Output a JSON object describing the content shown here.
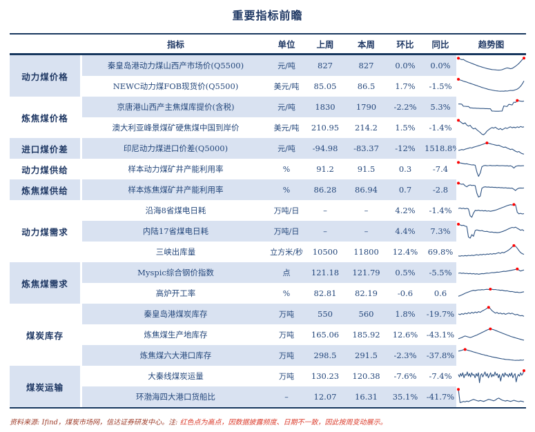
{
  "title": "重要指标前瞻",
  "header": {
    "indicator": "指标",
    "unit": "单位",
    "last_week": "上周",
    "this_week": "本周",
    "wow": "环比",
    "yoy": "同比",
    "trend": "趋势图"
  },
  "groups": [
    {
      "label": "动力煤价格",
      "span": 2
    },
    {
      "label": "炼焦煤价格",
      "span": 2
    },
    {
      "label": "进口煤价差",
      "span": 1
    },
    {
      "label": "动力煤供给",
      "span": 1
    },
    {
      "label": "炼焦煤供给",
      "span": 1
    },
    {
      "label": "动力煤需求",
      "span": 3
    },
    {
      "label": "炼焦煤需求",
      "span": 2
    },
    {
      "label": "煤炭库存",
      "span": 3
    },
    {
      "label": "煤炭运输",
      "span": 2
    }
  ],
  "rows": [
    {
      "indicator": "秦皇岛港动力煤山西产市场价(Q5500)",
      "unit": "元/吨",
      "last_week": "827",
      "this_week": "827",
      "wow": "0.0%",
      "yoy": "0.0%",
      "spark": {
        "y": [
          9.4,
          9.0,
          8.6,
          8.7,
          8.0,
          7.5,
          7.1,
          6.7,
          6.3,
          5.9,
          5.5,
          5.1,
          4.7,
          4.4,
          4.1,
          3.8,
          3.5,
          3.2,
          3.0,
          2.8,
          2.6,
          2.5,
          2.4,
          2.3,
          2.25,
          2.3,
          2.5,
          2.9,
          3.3,
          3.6,
          3.4,
          3.1,
          3.3,
          3.9,
          4.6,
          5.4,
          6.3,
          7.4,
          8.6,
          9.5
        ],
        "dots": [
          0,
          39
        ]
      }
    },
    {
      "indicator": "NEWC动力煤FOB现货价(Q5500)",
      "unit": "美元/吨",
      "last_week": "85.05",
      "this_week": "86.5",
      "wow": "1.7%",
      "yoy": "-1.5%",
      "spark": {
        "y": [
          9.2,
          8.8,
          8.5,
          8.1,
          7.8,
          7.5,
          7.1,
          6.8,
          6.4,
          6.1,
          5.7,
          5.4,
          5.0,
          4.7,
          4.3,
          4.0,
          3.7,
          3.4,
          3.1,
          2.9,
          2.7,
          2.5,
          2.3,
          2.2,
          2.1,
          2.0,
          2.1,
          2.0,
          2.2,
          2.1,
          2.3,
          2.5,
          2.4,
          2.6,
          2.9,
          3.3,
          4.0,
          5.0,
          6.4,
          8.2
        ],
        "dots": [
          0
        ]
      }
    },
    {
      "indicator": "京唐港山西产主焦煤库提价(含税)",
      "unit": "元/吨",
      "last_week": "1830",
      "this_week": "1790",
      "wow": "-2.2%",
      "yoy": "5.3%",
      "spark": {
        "y": [
          6.8,
          6.8,
          6.7,
          5.4,
          5.4,
          5.3,
          5.3,
          4.4,
          4.4,
          4.3,
          4.3,
          4.2,
          4.2,
          4.1,
          4.1,
          4.1,
          4.0,
          4.0,
          3.9,
          3.9,
          2.5,
          2.5,
          2.4,
          2.4,
          2.4,
          2.5,
          2.5,
          5.6,
          5.4,
          5.3,
          6.6,
          6.4,
          6.2,
          7.9,
          7.7,
          8.9,
          8.7,
          8.5,
          8.4,
          8.6
        ],
        "dots": [
          35
        ]
      }
    },
    {
      "indicator": "澳大利亚峰景煤矿硬焦煤中国到岸价",
      "unit": "美元/吨",
      "last_week": "210.95",
      "this_week": "214.2",
      "wow": "1.5%",
      "yoy": "-1.4%",
      "spark": {
        "y": [
          9.4,
          8.7,
          7.9,
          7.3,
          7.9,
          6.6,
          5.9,
          6.4,
          5.1,
          4.3,
          4.7,
          3.7,
          2.9,
          2.1,
          1.1,
          0.7,
          1.6,
          2.9,
          3.7,
          4.5,
          5.1,
          4.7,
          5.3,
          4.5,
          3.9,
          4.5,
          3.7,
          4.3,
          4.9,
          4.5,
          5.1,
          5.5,
          4.9,
          5.3,
          4.9,
          5.5,
          5.1,
          5.7,
          5.3,
          5.5
        ],
        "dots": [
          0
        ]
      }
    },
    {
      "indicator": "印尼动力煤进口价差(Q5000)",
      "unit": "元/吨",
      "last_week": "-94.98",
      "this_week": "-83.37",
      "wow": "-12%",
      "yoy": "1518.8%",
      "spark": {
        "y": [
          3.8,
          4.0,
          4.3,
          4.1,
          4.5,
          4.8,
          5.1,
          5.4,
          5.2,
          5.7,
          6.0,
          6.3,
          6.6,
          6.9,
          7.3,
          7.6,
          8.0,
          8.3,
          8.1,
          7.8,
          7.5,
          7.3,
          7.0,
          6.8,
          6.9,
          6.4,
          6.0,
          5.6,
          5.8,
          5.2,
          4.8,
          4.3,
          4.6,
          3.9,
          3.3,
          2.8,
          3.1,
          2.3,
          1.8,
          1.5
        ],
        "dots": [
          17
        ]
      }
    },
    {
      "indicator": "样本动力煤矿井产能利用率",
      "unit": "%",
      "last_week": "91.2",
      "this_week": "91.5",
      "wow": "0.3",
      "yoy": "-7.4",
      "spark": {
        "y": [
          9.0,
          8.7,
          8.5,
          8.3,
          8.1,
          8.2,
          7.9,
          7.7,
          7.5,
          7.6,
          7.3,
          3.2,
          0.6,
          2.6,
          6.4,
          7.0,
          7.2,
          7.0,
          7.1,
          7.2,
          7.0,
          7.1,
          7.0,
          7.2,
          7.0,
          7.0,
          7.1,
          7.0,
          6.9,
          7.0,
          6.8,
          7.0,
          6.6,
          5.6,
          6.6,
          6.9,
          7.0,
          6.9,
          7.0,
          7.0
        ],
        "dots": [
          0
        ]
      }
    },
    {
      "indicator": "样本炼焦煤矿井产能利用率",
      "unit": "%",
      "last_week": "86.28",
      "this_week": "86.94",
      "wow": "0.7",
      "yoy": "-2.8",
      "spark": {
        "y": [
          9.0,
          8.6,
          8.3,
          8.5,
          7.4,
          6.8,
          7.6,
          7.9,
          7.6,
          7.7,
          7.4,
          2.9,
          0.6,
          1.2,
          5.9,
          6.6,
          6.8,
          6.6,
          6.7,
          6.5,
          6.6,
          6.4,
          6.5,
          6.3,
          6.4,
          6.2,
          6.3,
          6.1,
          6.2,
          6.0,
          6.1,
          5.9,
          6.0,
          5.3,
          4.6,
          5.5,
          6.0,
          6.1,
          6.0,
          6.1
        ],
        "dots": [
          0
        ]
      }
    },
    {
      "indicator": "沿海8省煤电日耗",
      "unit": "万吨/日",
      "last_week": "–",
      "this_week": "–",
      "wow": "4.2%",
      "yoy": "-1.4%",
      "spark": {
        "y": [
          6.2,
          6.5,
          6.1,
          6.4,
          6.0,
          6.3,
          5.9,
          1.8,
          0.9,
          3.4,
          5.1,
          4.9,
          5.2,
          4.8,
          5.0,
          4.7,
          4.9,
          4.6,
          4.8,
          4.5,
          4.7,
          4.9,
          5.2,
          5.5,
          5.9,
          6.3,
          6.7,
          7.1,
          7.5,
          7.9,
          8.2,
          8.5,
          8.3,
          8.6,
          8.4,
          3.9,
          3.0,
          3.3,
          2.9,
          3.1
        ],
        "dots": [
          33
        ]
      }
    },
    {
      "indicator": "内陆17省煤电日耗",
      "unit": "万吨/日",
      "last_week": "–",
      "this_week": "–",
      "wow": "4.4%",
      "yoy": "7.3%",
      "spark": {
        "y": [
          9.2,
          8.8,
          8.4,
          8.6,
          8.1,
          7.8,
          1.5,
          0.8,
          2.9,
          1.9,
          5.4,
          5.8,
          5.5,
          5.2,
          5.4,
          5.0,
          4.8,
          4.9,
          4.6,
          4.4,
          4.5,
          4.2,
          4.3,
          4.1,
          4.2,
          4.4,
          4.7,
          5.1,
          5.5,
          6.0,
          6.5,
          6.9,
          7.3,
          7.1,
          7.4,
          6.8,
          6.2,
          5.6,
          5.9,
          5.2
        ],
        "dots": [
          0
        ]
      }
    },
    {
      "indicator": "三峡出库量",
      "unit": "立方米/秒",
      "last_week": "10500",
      "this_week": "11800",
      "wow": "12.4%",
      "yoy": "69.8%",
      "spark": {
        "y": [
          2.6,
          2.4,
          2.7,
          2.5,
          2.8,
          2.6,
          2.9,
          2.7,
          3.0,
          2.8,
          3.1,
          3.3,
          3.0,
          3.4,
          3.2,
          3.6,
          3.3,
          3.7,
          3.5,
          3.9,
          3.6,
          4.0,
          3.8,
          4.2,
          4.5,
          4.1,
          4.7,
          4.4,
          5.0,
          5.5,
          6.2,
          7.0,
          8.0,
          8.8,
          8.4,
          7.2,
          5.8,
          4.6,
          3.9,
          3.5
        ],
        "dots": [
          33
        ]
      }
    },
    {
      "indicator": "Myspic综合钢价指数",
      "unit": "点",
      "last_week": "121.18",
      "this_week": "121.79",
      "wow": "0.5%",
      "yoy": "-5.5%",
      "spark": {
        "y": [
          4.6,
          4.8,
          4.5,
          4.7,
          4.4,
          4.6,
          4.3,
          4.5,
          4.2,
          4.4,
          4.1,
          4.3,
          4.0,
          4.2,
          4.4,
          4.3,
          4.5,
          4.7,
          4.6,
          4.8,
          5.0,
          4.9,
          5.1,
          5.3,
          5.2,
          5.4,
          5.6,
          5.8,
          5.7,
          5.9,
          6.1,
          6.3,
          6.5,
          6.7,
          6.9,
          7.2,
          6.5,
          5.9,
          6.3,
          6.6
        ],
        "dots": [
          35
        ]
      }
    },
    {
      "indicator": "高炉开工率",
      "unit": "%",
      "last_week": "82.81",
      "this_week": "82.19",
      "wow": "-0.6",
      "yoy": "0.6",
      "spark": {
        "y": [
          3.2,
          3.6,
          4.0,
          4.5,
          5.0,
          5.4,
          5.8,
          6.2,
          6.5,
          6.8,
          6.6,
          6.9,
          7.1,
          7.0,
          7.2,
          7.1,
          7.3,
          7.4,
          7.3,
          7.5,
          7.4,
          7.2,
          7.3,
          7.1,
          7.0,
          6.8,
          6.9,
          6.6,
          6.4,
          6.5,
          6.2,
          6.0,
          6.1,
          5.8,
          5.6,
          5.7,
          5.4,
          5.5,
          5.7,
          5.9
        ],
        "dots": [
          19
        ]
      }
    },
    {
      "indicator": "秦皇岛港煤炭库存",
      "unit": "万吨",
      "last_week": "550",
      "this_week": "560",
      "wow": "1.8%",
      "yoy": "-19.7%",
      "spark": {
        "y": [
          5.0,
          4.6,
          5.2,
          4.8,
          5.5,
          5.1,
          5.8,
          5.3,
          6.0,
          5.5,
          6.2,
          5.7,
          6.4,
          6.0,
          6.7,
          7.2,
          7.8,
          8.4,
          9.0,
          8.2,
          7.0,
          6.2,
          5.5,
          5.9,
          5.2,
          5.6,
          5.0,
          5.4,
          4.8,
          5.2,
          5.6,
          5.1,
          5.5,
          4.9,
          4.5,
          4.8,
          4.2,
          3.9,
          4.1,
          3.6
        ],
        "dots": [
          18
        ]
      }
    },
    {
      "indicator": "炼焦煤生产地库存",
      "unit": "万吨",
      "last_week": "165.06",
      "this_week": "185.92",
      "wow": "12.6%",
      "yoy": "-43.1%",
      "spark": {
        "y": [
          2.6,
          2.9,
          3.3,
          3.8,
          4.2,
          3.9,
          3.6,
          3.3,
          3.6,
          4.0,
          4.4,
          4.8,
          5.3,
          5.8,
          6.3,
          6.8,
          7.3,
          7.8,
          8.2,
          8.5,
          8.3,
          8.0,
          7.6,
          7.2,
          6.8,
          6.4,
          6.0,
          5.6,
          5.2,
          4.8,
          4.4,
          4.0,
          3.7,
          3.4,
          3.1,
          2.8,
          2.5,
          2.2,
          1.9,
          1.7
        ],
        "dots": [
          19
        ]
      }
    },
    {
      "indicator": "炼焦煤六大港口库存",
      "unit": "万吨",
      "last_week": "298.5",
      "this_week": "291.5",
      "wow": "-2.3%",
      "yoy": "-37.8%",
      "spark": {
        "y": [
          7.6,
          7.8,
          8.1,
          8.4,
          8.6,
          8.3,
          8.0,
          7.7,
          7.4,
          7.1,
          6.8,
          6.5,
          6.2,
          5.9,
          5.6,
          5.4,
          5.1,
          4.9,
          4.6,
          4.4,
          4.1,
          3.9,
          3.7,
          3.5,
          3.3,
          3.1,
          2.9,
          2.8,
          2.6,
          2.5,
          2.4,
          2.3,
          2.2,
          2.1,
          2.0,
          2.1,
          2.0,
          2.2,
          2.1,
          2.3
        ],
        "dots": [
          4
        ]
      }
    },
    {
      "indicator": "大秦线煤炭运量",
      "unit": "万吨",
      "last_week": "130.23",
      "this_week": "120.38",
      "wow": "-7.6%",
      "yoy": "-7.4%",
      "spark": {
        "y": [
          6.0,
          4.5,
          6.5,
          5.0,
          7.0,
          4.0,
          6.0,
          5.5,
          7.5,
          5.0,
          6.5,
          4.5,
          7.0,
          5.5,
          6.0,
          4.0,
          6.5,
          5.0,
          7.0,
          1.0,
          5.5,
          6.5,
          4.5,
          6.0,
          7.5,
          5.0,
          6.5,
          4.0,
          5.5,
          7.0,
          4.5,
          6.0,
          5.0,
          7.5,
          5.5,
          6.5,
          4.0,
          6.0,
          2.0,
          5.0,
          6.5,
          4.5,
          7.0,
          5.5,
          6.0,
          4.5,
          6.5,
          5.0,
          7.0,
          4.0,
          5.5,
          6.5,
          1.5,
          4.5,
          6.0,
          5.0,
          7.0,
          5.5,
          6.5,
          8.3
        ],
        "dots": [
          59
        ]
      }
    },
    {
      "indicator": "环渤海四大港口货船比",
      "unit": "–",
      "last_week": "12.07",
      "this_week": "16.31",
      "wow": "35.1%",
      "yoy": "-41.7%",
      "spark": {
        "y": [
          9.5,
          1.5,
          1.8,
          2.2,
          1.9,
          2.4,
          2.1,
          2.6,
          3.0,
          3.4,
          3.1,
          2.7,
          2.4,
          2.8,
          2.5,
          2.2,
          2.6,
          3.0,
          3.5,
          3.2,
          2.9,
          2.6,
          3.0,
          3.8,
          4.2,
          3.6,
          3.0,
          2.7,
          2.4,
          2.8,
          2.5,
          2.2,
          2.5,
          2.9,
          2.6,
          2.3,
          2.1,
          2.4,
          2.2,
          1.9
        ],
        "dots": [
          0
        ]
      }
    }
  ],
  "footer": {
    "source": "资料来源: Ifind，煤炭市场网，信达证券研发中心。注: ",
    "note": "红色点为高点，因数据披露频度、日期不一致，因此按周变动展示。"
  },
  "colors": {
    "navy": "#1F3864",
    "band_blue": "#D9E2F1",
    "band_white": "#FFFFFF",
    "spark_line": "#2B5080",
    "spark_dot": "#FF0000",
    "source_text": "#9E3B28",
    "note_text": "#DB3B2B"
  }
}
